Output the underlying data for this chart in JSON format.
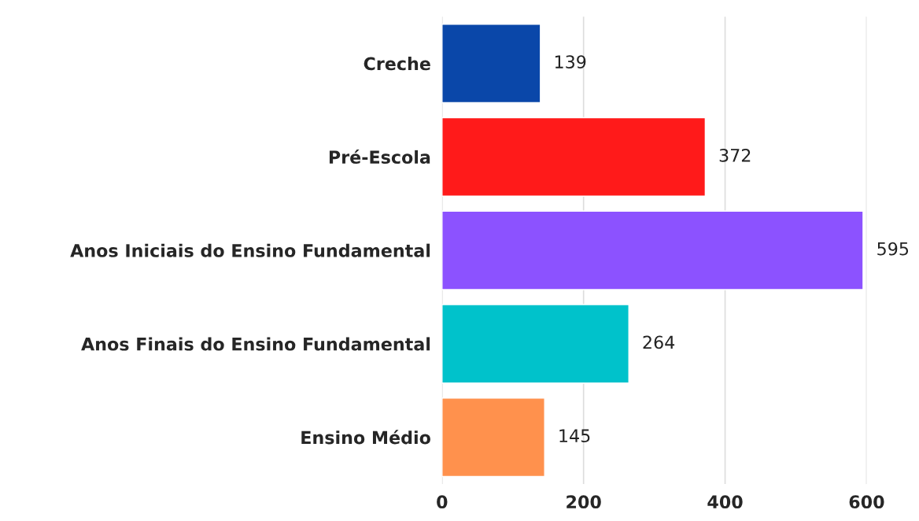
{
  "chart_data": {
    "type": "bar",
    "orientation": "horizontal",
    "categories": [
      "Creche",
      "Pré-Escola",
      "Anos Iniciais do Ensino Fundamental",
      "Anos Finais do Ensino Fundamental",
      "Ensino Médio"
    ],
    "values": [
      139,
      372,
      595,
      264,
      145
    ],
    "colors": [
      "#0a47a9",
      "#ff1a1a",
      "#8c52ff",
      "#00c2cb",
      "#ff914d"
    ],
    "xlim": [
      0,
      600
    ],
    "xticks": [
      0,
      200,
      400,
      600
    ],
    "grid": "x",
    "data_labels": true
  }
}
